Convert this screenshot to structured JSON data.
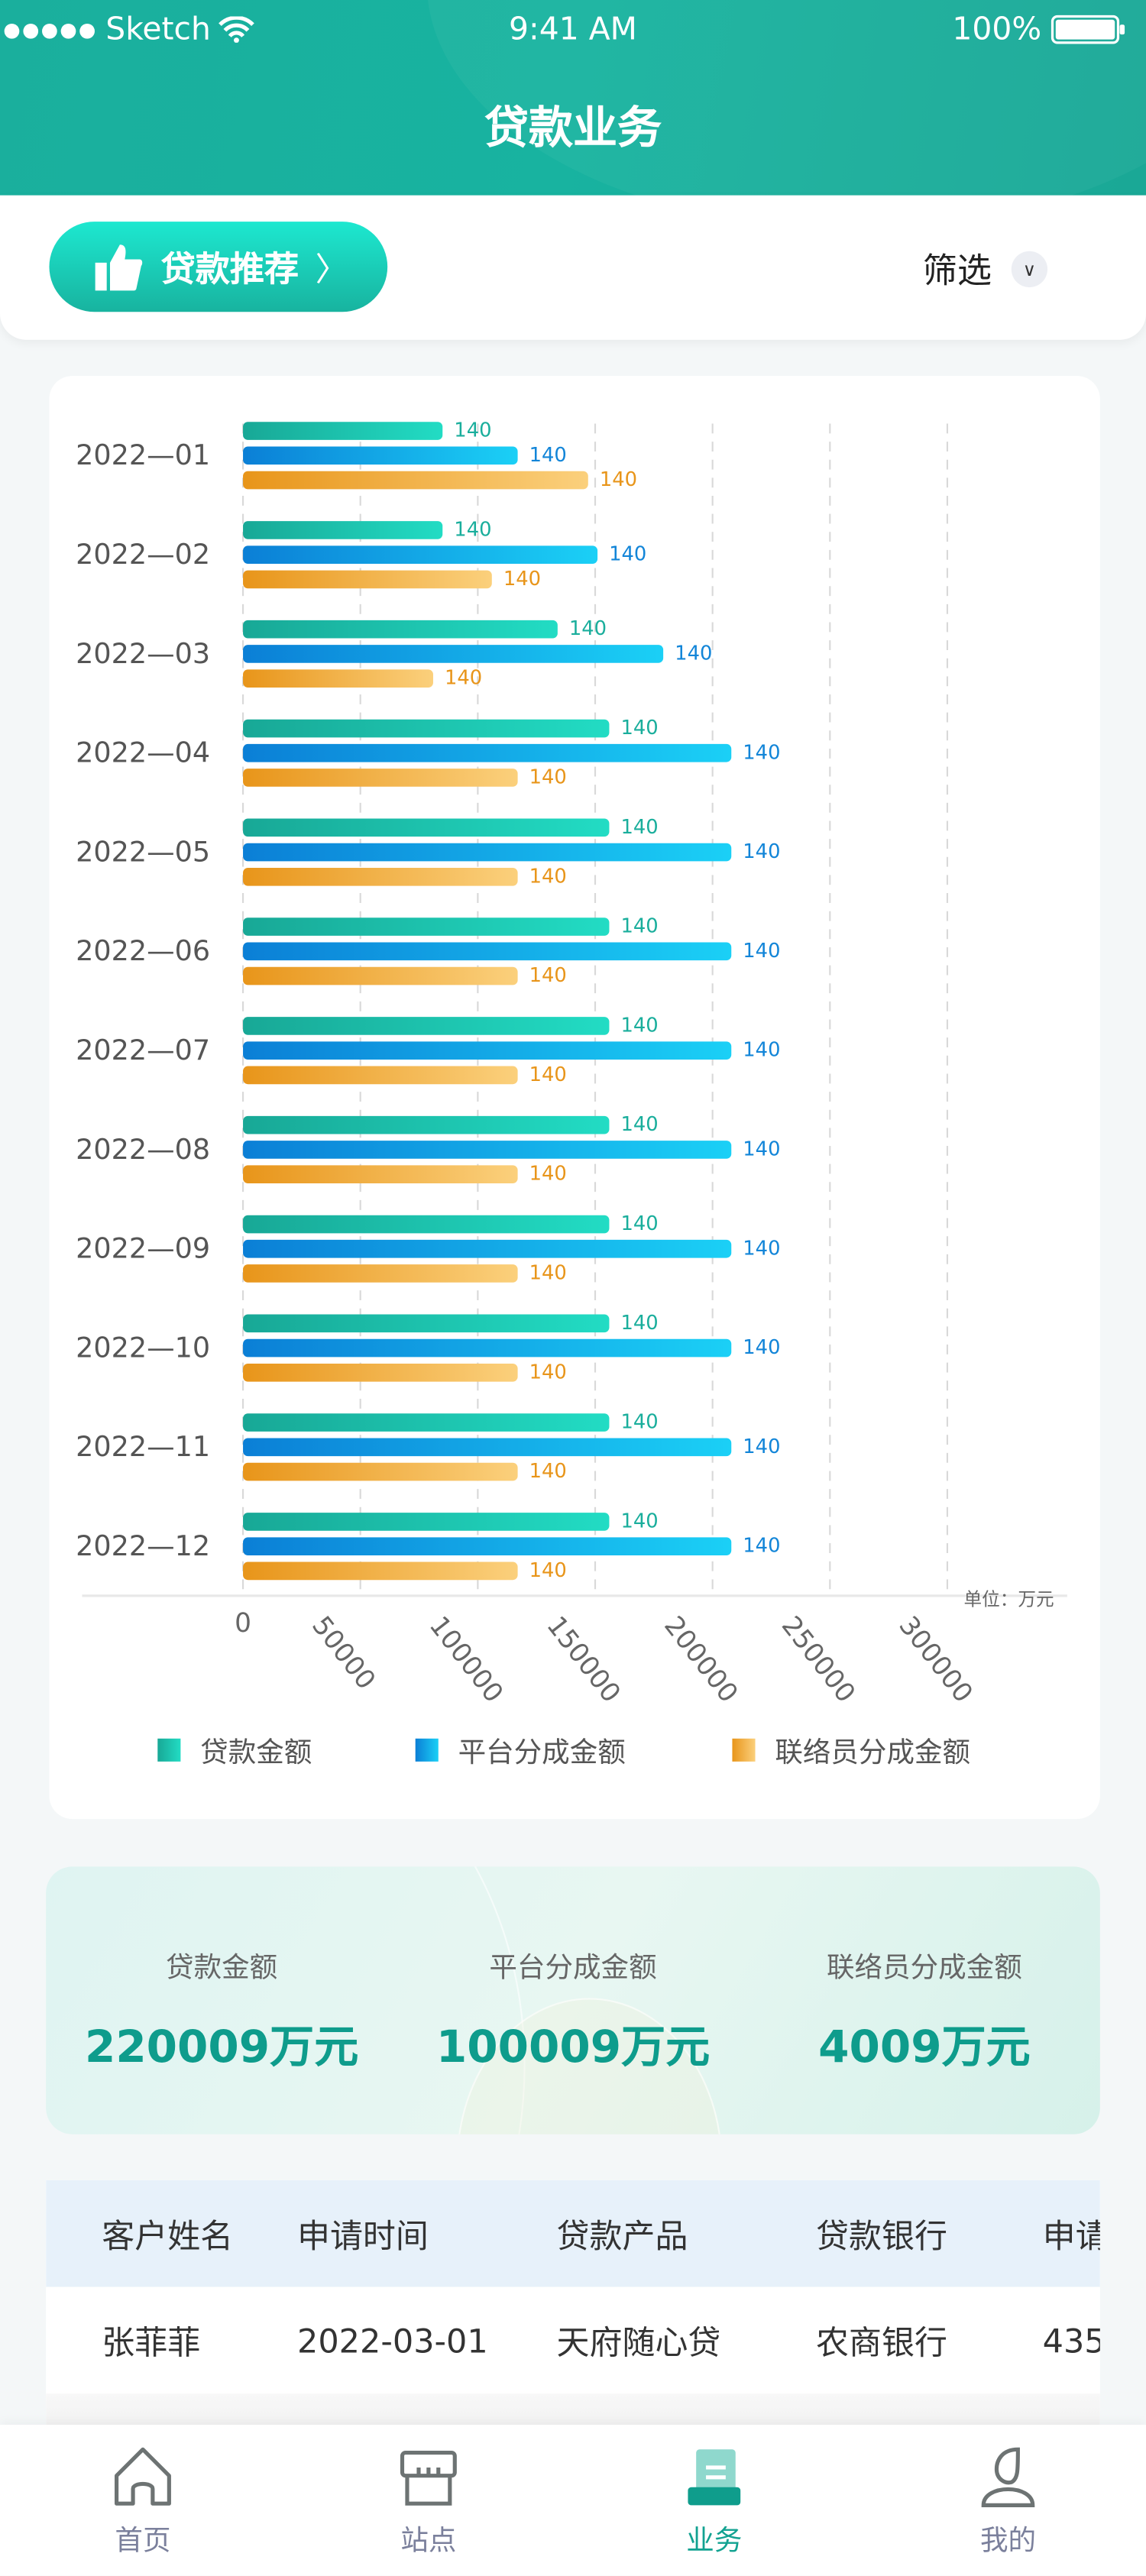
{
  "status_bar": {
    "carrier": "Sketch",
    "time": "9:41 AM",
    "battery": "100%"
  },
  "header": {
    "title": "贷款业务"
  },
  "toolbar": {
    "recommend_label": "贷款推荐",
    "filter_label": "筛选"
  },
  "colors": {
    "teal": "#1aaf9d",
    "blue": "#0b7fd6",
    "orange": "#e8951a",
    "accent_text": "#0e9c8c"
  },
  "chart_data": {
    "type": "bar",
    "orientation": "horizontal",
    "categories": [
      "2022—01",
      "2022—02",
      "2022—03",
      "2022—04",
      "2022—05",
      "2022—06",
      "2022—07",
      "2022—08",
      "2022—09",
      "2022—10",
      "2022—11",
      "2022—12"
    ],
    "series": [
      {
        "name": "贷款金额",
        "values": [
          85000,
          85000,
          134000,
          156000,
          156000,
          156000,
          156000,
          156000,
          156000,
          156000,
          156000,
          156000
        ],
        "labels": [
          "140",
          "140",
          "140",
          "140",
          "140",
          "140",
          "140",
          "140",
          "140",
          "140",
          "140",
          "140"
        ]
      },
      {
        "name": "平台分成金额",
        "values": [
          117000,
          151000,
          179000,
          208000,
          208000,
          208000,
          208000,
          208000,
          208000,
          208000,
          208000,
          208000
        ],
        "labels": [
          "140",
          "140",
          "140",
          "140",
          "140",
          "140",
          "140",
          "140",
          "140",
          "140",
          "140",
          "140"
        ]
      },
      {
        "name": "联络员分成金额",
        "values": [
          147000,
          106000,
          81000,
          117000,
          117000,
          117000,
          117000,
          117000,
          117000,
          117000,
          117000,
          117000
        ],
        "labels": [
          "140",
          "140",
          "140",
          "140",
          "140",
          "140",
          "140",
          "140",
          "140",
          "140",
          "140",
          "140"
        ]
      }
    ],
    "xticks": [
      "0",
      "50000",
      "100000",
      "150000",
      "200000",
      "250000",
      "300000"
    ],
    "xlim": [
      0,
      300000
    ],
    "unit": "单位：万元",
    "grid": "vertical dashed",
    "legend": "bottom"
  },
  "summary": [
    {
      "label": "贷款金额",
      "value": "220009万元"
    },
    {
      "label": "平台分成金额",
      "value": "100009万元"
    },
    {
      "label": "联络员分成金额",
      "value": "4009万元"
    }
  ],
  "table": {
    "headers": [
      "客户姓名",
      "申请时间",
      "贷款产品",
      "贷款银行",
      "申请"
    ],
    "rows": [
      [
        "张菲菲",
        "2022-03-01",
        "天府随心贷",
        "农商银行",
        "435"
      ]
    ]
  },
  "tabbar": [
    {
      "label": "首页"
    },
    {
      "label": "站点"
    },
    {
      "label": "业务"
    },
    {
      "label": "我的"
    }
  ]
}
